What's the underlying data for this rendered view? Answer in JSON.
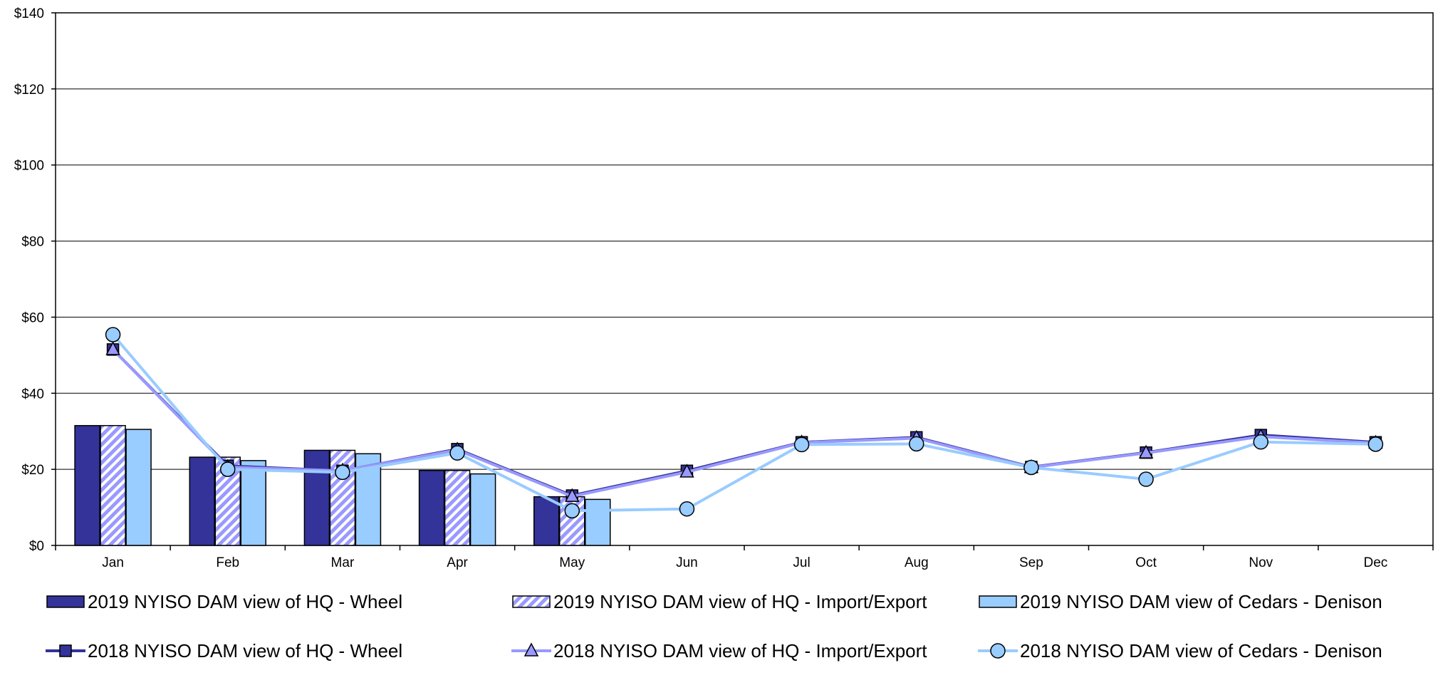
{
  "chart_data": {
    "type": "bar",
    "categories": [
      "Jan",
      "Feb",
      "Mar",
      "Apr",
      "May",
      "Jun",
      "Jul",
      "Aug",
      "Sep",
      "Oct",
      "Nov",
      "Dec"
    ],
    "ylim": [
      0,
      140
    ],
    "y_ticks": [
      0,
      20,
      40,
      60,
      80,
      100,
      120,
      140
    ],
    "y_tick_labels": [
      "$0",
      "$20",
      "$40",
      "$60",
      "$80",
      "$100",
      "$120",
      "$140"
    ],
    "grid": true,
    "legend_position": "bottom",
    "bar_series": [
      {
        "name": "2019 NYISO DAM view of HQ - Wheel",
        "color": "#333399",
        "pattern": "solid",
        "values": [
          31.5,
          23.2,
          25.0,
          19.7,
          12.8,
          null,
          null,
          null,
          null,
          null,
          null,
          null
        ]
      },
      {
        "name": "2019 NYISO DAM view of HQ - Import/Export",
        "color": "#9999ff",
        "pattern": "diagonal-stripes",
        "values": [
          31.5,
          23.2,
          25.0,
          19.7,
          12.8,
          null,
          null,
          null,
          null,
          null,
          null,
          null
        ]
      },
      {
        "name": "2019 NYISO DAM view of Cedars - Denison",
        "color": "#99ccff",
        "pattern": "solid",
        "values": [
          30.5,
          22.3,
          24.1,
          18.8,
          12.1,
          null,
          null,
          null,
          null,
          null,
          null,
          null
        ]
      }
    ],
    "line_series": [
      {
        "name": "2018 NYISO DAM view of HQ - Wheel",
        "color": "#333399",
        "marker": "square",
        "values": [
          51.5,
          20.9,
          19.6,
          25.3,
          13.1,
          19.6,
          27.1,
          28.4,
          20.6,
          24.4,
          29.0,
          27.1
        ]
      },
      {
        "name": "2018 NYISO DAM view of HQ - Import/Export",
        "color": "#9999ff",
        "marker": "triangle",
        "values": [
          51.5,
          20.6,
          19.6,
          25.1,
          12.9,
          19.3,
          27.0,
          28.2,
          20.5,
          24.3,
          28.6,
          26.9
        ]
      },
      {
        "name": "2018 NYISO DAM view of Cedars - Denison",
        "color": "#99ccff",
        "marker": "circle",
        "values": [
          55.4,
          20.0,
          19.2,
          24.3,
          9.1,
          9.6,
          26.5,
          26.7,
          20.5,
          17.4,
          27.2,
          26.6
        ]
      }
    ]
  }
}
